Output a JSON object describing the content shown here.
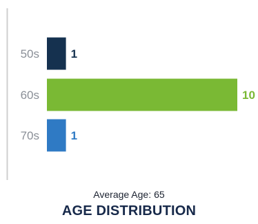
{
  "chart_data": {
    "type": "bar",
    "orientation": "horizontal",
    "title": "AGE DISTRIBUTION",
    "subtitle_label": "Average Age:",
    "subtitle_value": "65",
    "categories": [
      "50s",
      "60s",
      "70s"
    ],
    "values": [
      1,
      10,
      1
    ],
    "colors": [
      "#15314f",
      "#7ab934",
      "#2f7ac4"
    ],
    "xlim": [
      0,
      10
    ],
    "data_labels": true,
    "grid": false,
    "legend": "none"
  }
}
